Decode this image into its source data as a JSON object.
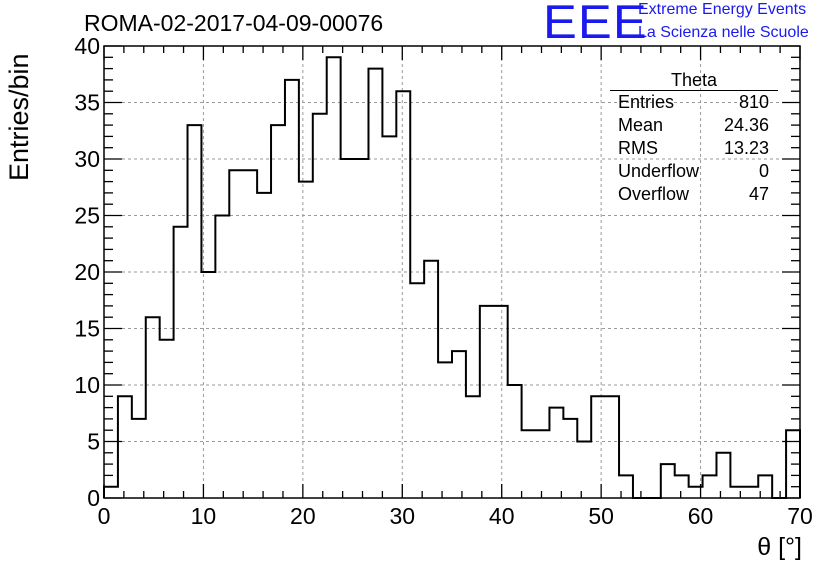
{
  "title": "ROMA-02-2017-04-09-00076",
  "logo": {
    "letters": "EEE",
    "line1": "Extreme Energy Events",
    "line2": "La Scienza nelle Scuole",
    "color": "#1a1aee"
  },
  "stats": {
    "title": "Theta",
    "rows": [
      {
        "label": "Entries",
        "value": "810"
      },
      {
        "label": "Mean",
        "value": "24.36"
      },
      {
        "label": "RMS",
        "value": "13.23"
      },
      {
        "label": "Underflow",
        "value": "0"
      },
      {
        "label": "Overflow",
        "value": "47"
      }
    ]
  },
  "chart_data": {
    "type": "bar",
    "histogram": true,
    "bin_width": 1.4,
    "x_start": 0,
    "values": [
      1,
      9,
      7,
      16,
      14,
      24,
      33,
      20,
      25,
      29,
      29,
      27,
      33,
      37,
      28,
      34,
      39,
      30,
      30,
      38,
      32,
      36,
      19,
      21,
      12,
      13,
      9,
      17,
      17,
      10,
      6,
      6,
      8,
      7,
      5,
      9,
      9,
      2,
      0,
      0,
      3,
      2,
      1,
      2,
      4,
      1,
      1,
      2,
      0,
      6
    ],
    "xlabel": "θ [°]",
    "ylabel": "Entries/bin",
    "xlim": [
      0,
      70
    ],
    "ylim": [
      0,
      40
    ],
    "x_ticks": [
      "0",
      "10",
      "20",
      "30",
      "40",
      "50",
      "60",
      "70"
    ],
    "y_ticks": [
      "0",
      "5",
      "10",
      "15",
      "20",
      "25",
      "30",
      "35",
      "40"
    ],
    "grid": true,
    "line_color": "#000000"
  }
}
